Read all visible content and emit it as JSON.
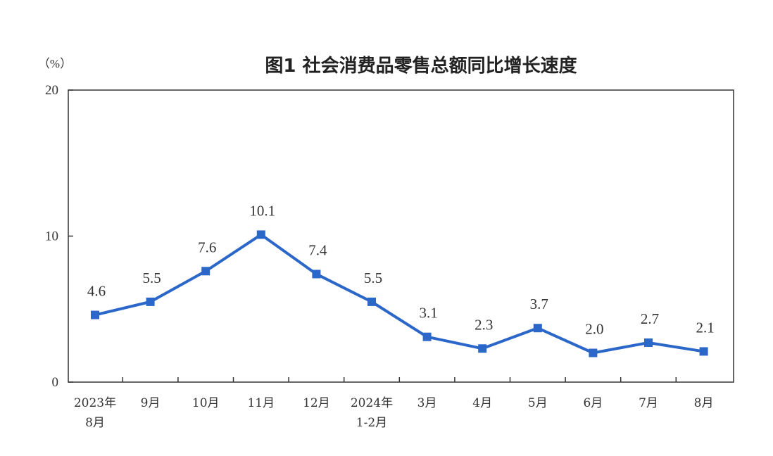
{
  "chart_data": {
    "type": "line",
    "title": "图1 社会消费品零售总额同比增长速度",
    "unit_label": "（%）",
    "categories": [
      [
        "2023年",
        "8月"
      ],
      [
        "9月"
      ],
      [
        "10月"
      ],
      [
        "11月"
      ],
      [
        "12月"
      ],
      [
        "2024年",
        "1-2月"
      ],
      [
        "3月"
      ],
      [
        "4月"
      ],
      [
        "5月"
      ],
      [
        "6月"
      ],
      [
        "7月"
      ],
      [
        "8月"
      ]
    ],
    "series": [
      {
        "values": [
          4.6,
          5.5,
          7.6,
          10.1,
          7.4,
          5.5,
          3.1,
          2.3,
          3.7,
          2.0,
          2.7,
          2.1
        ],
        "labels": [
          "4.6",
          "5.5",
          "7.6",
          "10.1",
          "7.4",
          "5.5",
          "3.1",
          "2.3",
          "3.7",
          "2.0",
          "2.7",
          "2.1"
        ],
        "color": "#2a67c9"
      }
    ],
    "ylim": [
      0,
      20
    ],
    "yticks": [
      "0",
      "10",
      "20"
    ],
    "grid": false,
    "legend": "none"
  }
}
